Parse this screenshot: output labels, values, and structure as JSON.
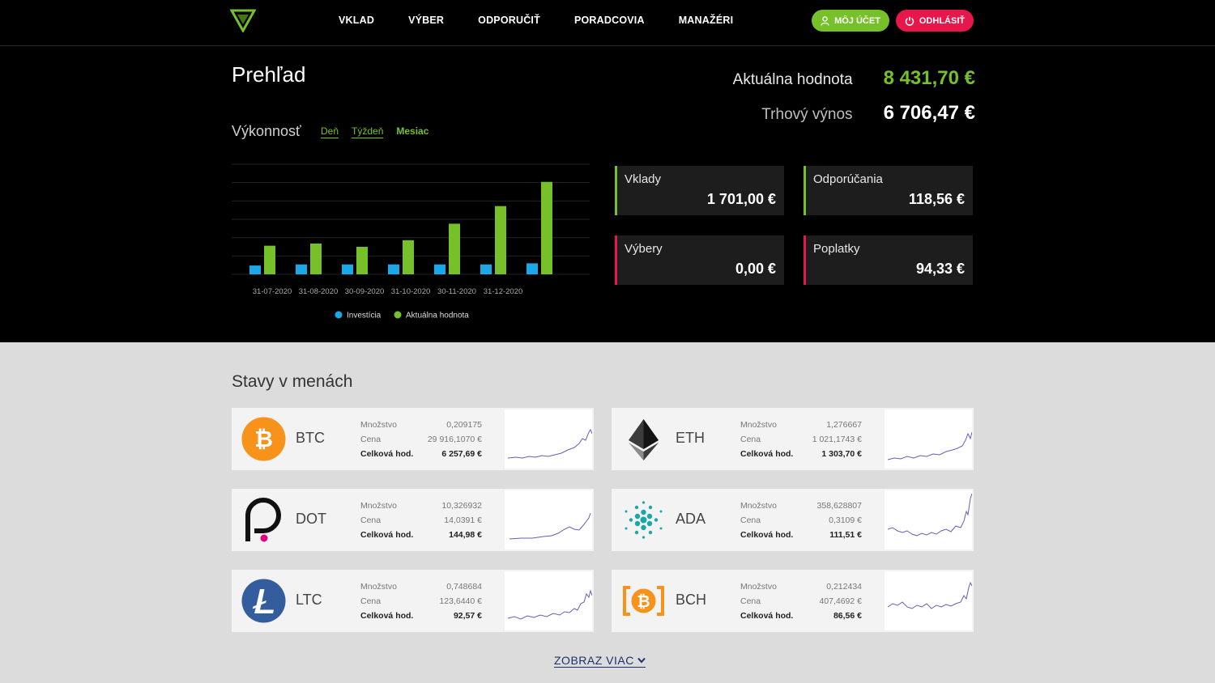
{
  "nav": {
    "items": [
      "VKLAD",
      "VÝBER",
      "ODPORUČIŤ",
      "PORADCOVIA",
      "MANAŽÉRI"
    ],
    "account_label": "MÔJ ÚČET",
    "logout_label": "ODHLÁSIŤ",
    "accent_green": "#76c12a",
    "accent_red": "#e6174b"
  },
  "overview": {
    "title": "Prehľad",
    "performance_label": "Výkonnosť",
    "tabs": [
      "Deň",
      "Týždeň",
      "Mesiac"
    ],
    "active_tab": "Mesiac",
    "current_value_label": "Aktuálna hodnota",
    "current_value": "8 431,70 €",
    "market_yield_label": "Trhový výnos",
    "market_yield": "6 706,47 €",
    "cards": [
      {
        "label": "Vklady",
        "value": "1 701,00 €",
        "color": "#76c12a"
      },
      {
        "label": "Odporúčania",
        "value": "118,56 €",
        "color": "#76c12a"
      },
      {
        "label": "Výbery",
        "value": "0,00 €",
        "color": "#e6174b"
      },
      {
        "label": "Poplatky",
        "value": "94,33 €",
        "color": "#e6174b"
      }
    ]
  },
  "chart_data": {
    "type": "bar",
    "categories": [
      "31-07-2020",
      "31-08-2020",
      "30-09-2020",
      "31-10-2020",
      "30-11-2020",
      "31-12-2020",
      ""
    ],
    "series": [
      {
        "name": "Investícia",
        "color": "#1ba8e8",
        "values": [
          0.08,
          0.09,
          0.09,
          0.09,
          0.09,
          0.09,
          0.1
        ]
      },
      {
        "name": "Aktuálna hodnota",
        "color": "#76c12a",
        "values": [
          0.26,
          0.28,
          0.25,
          0.31,
          0.46,
          0.62,
          0.84
        ]
      }
    ],
    "ylim": [
      0,
      1
    ],
    "grid": true,
    "legend": "bottom"
  },
  "balances": {
    "title": "Stavy v menách",
    "qty_label": "Množstvo",
    "price_label": "Cena",
    "total_label": "Celková hod.",
    "coins": [
      {
        "symbol": "BTC",
        "icon": "bitcoin-icon",
        "qty": "0,209175",
        "price": "29 916,1070 €",
        "total": "6 257,69 €"
      },
      {
        "symbol": "ETH",
        "icon": "ethereum-icon",
        "qty": "1,276667",
        "price": "1 021,1743 €",
        "total": "1 303,70 €"
      },
      {
        "symbol": "DOT",
        "icon": "polkadot-icon",
        "qty": "10,326932",
        "price": "14,0391 €",
        "total": "144,98 €"
      },
      {
        "symbol": "ADA",
        "icon": "cardano-icon",
        "qty": "358,628807",
        "price": "0,3109 €",
        "total": "111,51 €"
      },
      {
        "symbol": "LTC",
        "icon": "litecoin-icon",
        "qty": "0,748684",
        "price": "123,6440 €",
        "total": "92,57 €"
      },
      {
        "symbol": "BCH",
        "icon": "bitcoin-cash-icon",
        "qty": "0,212434",
        "price": "407,4692 €",
        "total": "86,56 €"
      }
    ],
    "show_more": "ZOBRAZ VIAC"
  }
}
